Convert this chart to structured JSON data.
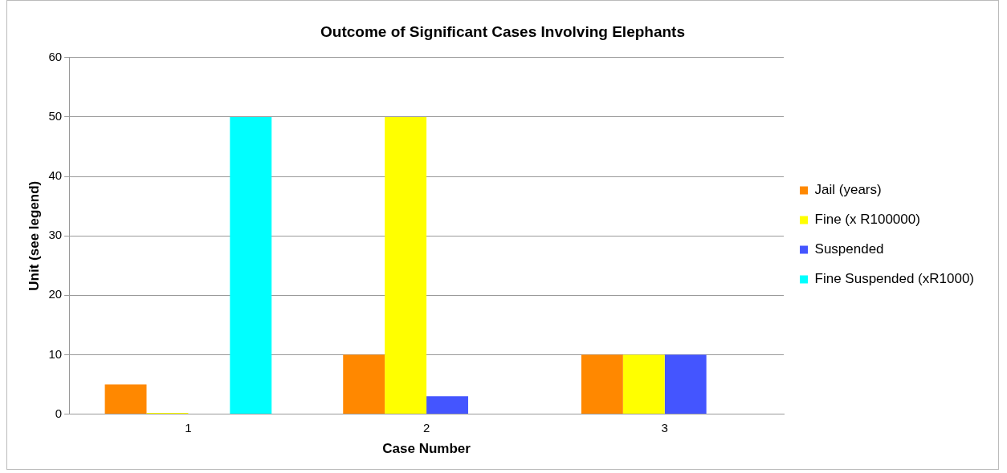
{
  "chart_data": {
    "type": "bar",
    "title": "Outcome of Significant Cases Involving Elephants",
    "xlabel": "Case Number",
    "ylabel": "Unit (see legend)",
    "categories": [
      "1",
      "2",
      "3"
    ],
    "series": [
      {
        "name": "Jail (years)",
        "color": "#ff8800",
        "values": [
          5,
          10,
          10
        ]
      },
      {
        "name": "Fine (x R100000)",
        "color": "#ffff00",
        "values": [
          0.2,
          50,
          10
        ]
      },
      {
        "name": "Suspended",
        "color": "#4455ff",
        "values": [
          null,
          3,
          10
        ]
      },
      {
        "name": "Fine Suspended (xR1000)",
        "color": "#00ffff",
        "values": [
          50,
          null,
          null
        ]
      }
    ],
    "ylim": [
      0,
      60
    ],
    "yticks": [
      0,
      10,
      20,
      30,
      40,
      50,
      60
    ],
    "grid": "y",
    "legend": "right"
  }
}
